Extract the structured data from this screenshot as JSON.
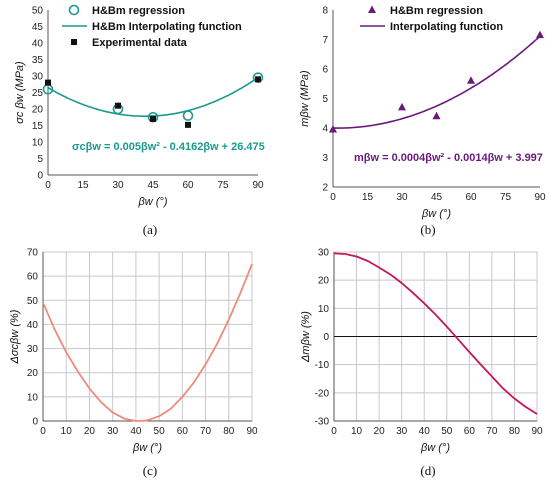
{
  "chart_data": [
    {
      "id": "a",
      "type": "scatter",
      "panel_label": "(a)",
      "xlabel": "βw (°)",
      "ylabel": "σc βw (MPa)",
      "xlim": [
        0,
        90
      ],
      "ylim": [
        0,
        50
      ],
      "xticks": [
        0,
        15,
        30,
        45,
        60,
        75,
        90
      ],
      "yticks": [
        0,
        5,
        10,
        15,
        20,
        25,
        30,
        35,
        40,
        45,
        50
      ],
      "grid": false,
      "legend_position": "top-center",
      "equation": "σcβw = 0.005βw² - 0.4162βw + 26.475",
      "curve": {
        "coeffs": [
          0.005,
          -0.4162,
          26.475
        ]
      },
      "series": [
        {
          "name": "H&Bm regression",
          "marker": "circle-open",
          "color": "#1a9a8e",
          "x": [
            0,
            30,
            45,
            60,
            90
          ],
          "y": [
            26,
            20,
            17.5,
            18,
            29.5
          ]
        },
        {
          "name": "H&Bm Interpolating function",
          "marker": "line",
          "color": "#1a9a8e"
        },
        {
          "name": "Experimental data",
          "marker": "square",
          "color": "#111111",
          "x": [
            0,
            30,
            45,
            60,
            90
          ],
          "y": [
            28,
            21,
            17,
            15.2,
            29
          ]
        }
      ]
    },
    {
      "id": "b",
      "type": "scatter",
      "panel_label": "(b)",
      "xlabel": "βw (°)",
      "ylabel": "mβw (MPa)",
      "xlim": [
        0,
        90
      ],
      "ylim": [
        2,
        8
      ],
      "xticks": [
        0,
        15,
        30,
        45,
        60,
        75,
        90
      ],
      "yticks": [
        2,
        3,
        4,
        5,
        6,
        7,
        8
      ],
      "grid": false,
      "legend_position": "top-center",
      "equation": "mβw = 0.0004βw² - 0.0014βw + 3.997",
      "curve": {
        "coeffs": [
          0.0004,
          -0.0014,
          3.997
        ]
      },
      "series": [
        {
          "name": "H&Bm regression",
          "marker": "triangle",
          "color": "#6a1b7a",
          "x": [
            0,
            30,
            45,
            60,
            90
          ],
          "y": [
            3.95,
            4.7,
            4.4,
            5.6,
            7.15
          ]
        },
        {
          "name": "Interpolating function",
          "marker": "line",
          "color": "#6a1b7a"
        }
      ]
    },
    {
      "id": "c",
      "type": "line",
      "panel_label": "(c)",
      "xlabel": "βw (°)",
      "ylabel": "Δσcβw (%)",
      "xlim": [
        0,
        90
      ],
      "ylim": [
        0,
        70
      ],
      "xticks": [
        0,
        10,
        20,
        30,
        40,
        50,
        60,
        70,
        80,
        90
      ],
      "yticks": [
        0,
        10,
        20,
        30,
        40,
        50,
        60,
        70
      ],
      "grid": true,
      "series": [
        {
          "color": "#f08a80",
          "x": [
            0,
            5,
            10,
            15,
            20,
            25,
            30,
            35,
            40,
            42,
            45,
            50,
            55,
            60,
            65,
            70,
            75,
            80,
            85,
            90
          ],
          "y": [
            49,
            38,
            28.5,
            20.5,
            13.5,
            7.8,
            3.5,
            1,
            0,
            0,
            0.3,
            2,
            5,
            10,
            16,
            23.5,
            32,
            42,
            53,
            65
          ]
        }
      ]
    },
    {
      "id": "d",
      "type": "line",
      "panel_label": "(d)",
      "xlabel": "βw (°)",
      "ylabel": "Δmβw (%)",
      "xlim": [
        0,
        90
      ],
      "ylim": [
        -30,
        30
      ],
      "xticks": [
        0,
        10,
        20,
        30,
        40,
        50,
        60,
        70,
        80,
        90
      ],
      "yticks": [
        -30,
        -20,
        -10,
        0,
        10,
        20,
        30
      ],
      "grid": true,
      "series": [
        {
          "color": "#c2185b",
          "x": [
            0,
            5,
            10,
            15,
            20,
            25,
            30,
            35,
            40,
            45,
            50,
            55,
            60,
            65,
            70,
            75,
            80,
            85,
            90
          ],
          "y": [
            29.5,
            29.3,
            28.4,
            26.8,
            24.5,
            22,
            19,
            15.5,
            11.8,
            7.8,
            3.5,
            -1,
            -5.5,
            -9.9,
            -14.2,
            -18.5,
            -22,
            -25,
            -27.5
          ]
        }
      ]
    }
  ]
}
